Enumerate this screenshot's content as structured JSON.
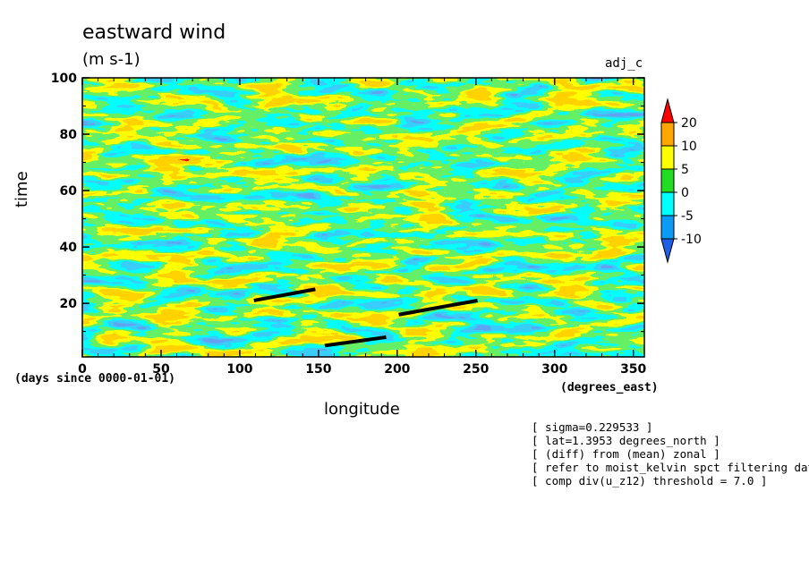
{
  "chart_data": {
    "type": "heatmap",
    "title": "eastward wind",
    "units": "(m s-1)",
    "run_label": "adj_c",
    "xlabel": "longitude",
    "xunits": "(degrees_east)",
    "ylabel": "time",
    "y_origin_label": "(days since 0000-01-01)",
    "xlim": [
      0,
      357
    ],
    "ylim": [
      1,
      100
    ],
    "x_ticks": [
      0,
      50,
      100,
      150,
      200,
      250,
      300,
      350
    ],
    "y_ticks": [
      20,
      40,
      60,
      80,
      100
    ],
    "colorbar": {
      "levels": [
        -10,
        -5,
        0,
        5,
        10,
        20
      ],
      "labels": [
        "20",
        "10",
        "5",
        "0",
        "-5",
        "-10"
      ],
      "colors": [
        "#1f5fe6",
        "#0a9bf5",
        "#00ffff",
        "#22dd22",
        "#ffff00",
        "#ffa500",
        "#ff0000"
      ],
      "extend": "both"
    },
    "overlay_lines": [
      {
        "x": [
          109,
          148
        ],
        "y": [
          21,
          25
        ]
      },
      {
        "x": [
          154,
          193
        ],
        "y": [
          5,
          8
        ]
      },
      {
        "x": [
          201,
          251
        ],
        "y": [
          16,
          21
        ]
      }
    ]
  },
  "notes": [
    "[ sigma=0.229533 ]",
    "[ lat=1.3953 degrees_north ]",
    "[ (diff) from (mean) zonal ]",
    "[ refer to moist_kelvin spct filtering data ]",
    "[ comp div(u_z12) threshold = 7.0 ]"
  ]
}
